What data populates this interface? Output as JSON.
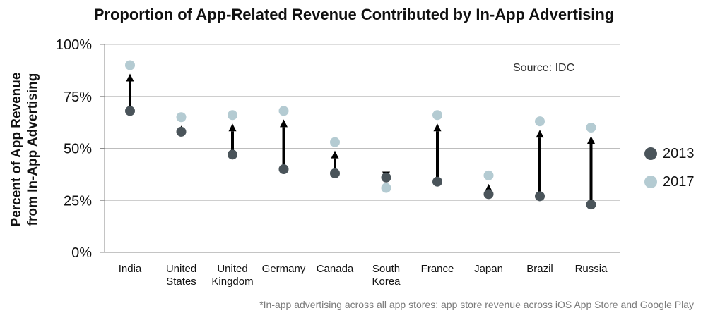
{
  "chart_data": {
    "type": "scatter",
    "title": "Proportion of App-Related Revenue Contributed by In-App Advertising",
    "ylabel": [
      "Percent of App Revenue",
      "from In-App Advertising"
    ],
    "xlabel": "",
    "ylim": [
      0,
      100
    ],
    "yticks": [
      {
        "value": 0,
        "label": "0%"
      },
      {
        "value": 25,
        "label": "25%"
      },
      {
        "value": 50,
        "label": "50%"
      },
      {
        "value": 75,
        "label": "75%"
      },
      {
        "value": 100,
        "label": "100%"
      }
    ],
    "grid": true,
    "legend_position": "right",
    "categories": [
      [
        "India"
      ],
      [
        "United",
        "States"
      ],
      [
        "United",
        "Kingdom"
      ],
      [
        "Germany"
      ],
      [
        "Canada"
      ],
      [
        "South",
        "Korea"
      ],
      [
        "France"
      ],
      [
        "Japan"
      ],
      [
        "Brazil"
      ],
      [
        "Russia"
      ]
    ],
    "series": [
      {
        "name": "2013",
        "color": "#4a545a",
        "values": [
          68,
          58,
          47,
          40,
          38,
          36,
          34,
          28,
          27,
          23
        ]
      },
      {
        "name": "2017",
        "color": "#b4cbd2",
        "values": [
          90,
          65,
          66,
          68,
          53,
          31,
          66,
          37,
          63,
          60
        ]
      }
    ],
    "annotations": [
      "Source: IDC"
    ],
    "footnote": "*In-app advertising across all app stores; app store revenue across iOS App Store and Google Play"
  }
}
